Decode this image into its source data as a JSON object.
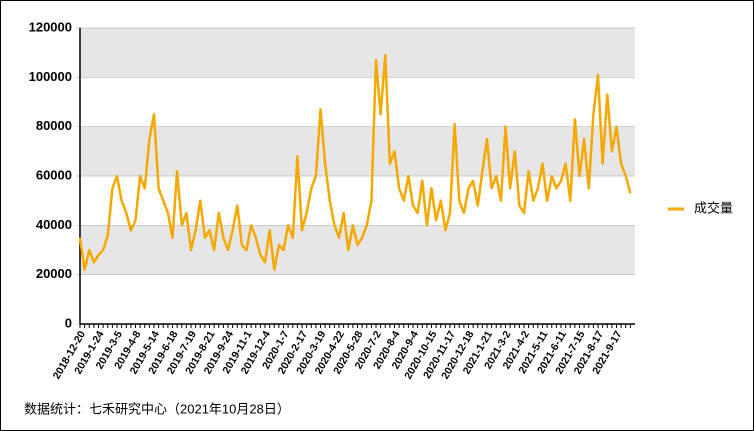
{
  "chart_data": {
    "type": "line",
    "categories": [
      "2018-12-20",
      null,
      null,
      null,
      "2019-1-24",
      null,
      null,
      null,
      "2019-3-5",
      null,
      null,
      null,
      "2019-4-8",
      null,
      null,
      null,
      "2019-5-14",
      null,
      null,
      null,
      "2019-6-18",
      null,
      null,
      null,
      "2019-7-19",
      null,
      null,
      null,
      "2019-8-21",
      null,
      null,
      null,
      "2019-9-24",
      null,
      null,
      null,
      "2019-11-1",
      null,
      null,
      null,
      "2019-12-4",
      null,
      null,
      null,
      "2020-1-7",
      null,
      null,
      null,
      "2020-2-17",
      null,
      null,
      null,
      "2020-3-19",
      null,
      null,
      null,
      "2020-4-22",
      null,
      null,
      null,
      "2020-5-28",
      null,
      null,
      null,
      "2020-7-2",
      null,
      null,
      null,
      "2020-8-4",
      null,
      null,
      null,
      "2020-9-4",
      null,
      null,
      null,
      "2020-10-15",
      null,
      null,
      null,
      "2020-11-17",
      null,
      null,
      null,
      "2020-12-18",
      null,
      null,
      null,
      "2021-1-21",
      null,
      null,
      null,
      "2021-3-2",
      null,
      null,
      null,
      "2021-4-2",
      null,
      null,
      null,
      "2021-5-11",
      null,
      null,
      null,
      "2021-6-11",
      null,
      null,
      null,
      "2021-7-15",
      null,
      null,
      null,
      "2021-8-17",
      null,
      null,
      null,
      "2021-9-17",
      null,
      null,
      null
    ],
    "series": [
      {
        "name": "成交量",
        "color": "#f5a800",
        "values": [
          35000,
          22000,
          30000,
          25000,
          28000,
          30000,
          36000,
          55000,
          60000,
          50000,
          45000,
          38000,
          42000,
          60000,
          55000,
          75000,
          85000,
          55000,
          50000,
          45000,
          35000,
          62000,
          40000,
          45000,
          30000,
          38000,
          50000,
          35000,
          38000,
          30000,
          45000,
          35000,
          30000,
          38000,
          48000,
          32000,
          30000,
          40000,
          35000,
          28000,
          25000,
          38000,
          22000,
          32000,
          30000,
          40000,
          35000,
          68000,
          38000,
          45000,
          55000,
          60000,
          87000,
          65000,
          50000,
          40000,
          35000,
          45000,
          30000,
          40000,
          32000,
          35000,
          40000,
          50000,
          107000,
          85000,
          109000,
          65000,
          70000,
          55000,
          50000,
          60000,
          48000,
          45000,
          58000,
          40000,
          55000,
          42000,
          50000,
          38000,
          45000,
          81000,
          50000,
          45000,
          55000,
          58000,
          48000,
          62000,
          75000,
          55000,
          60000,
          50000,
          80000,
          55000,
          70000,
          48000,
          45000,
          62000,
          50000,
          55000,
          65000,
          50000,
          60000,
          55000,
          58000,
          65000,
          50000,
          83000,
          60000,
          75000,
          55000,
          85000,
          101000,
          65000,
          93000,
          70000,
          80000,
          65000,
          60000,
          53000
        ]
      }
    ],
    "ylim": [
      0,
      120000
    ],
    "yticks": [
      0,
      20000,
      40000,
      60000,
      80000,
      100000,
      120000
    ],
    "bands": true,
    "legend": "right",
    "footnote": "数据统计：七禾研究中心（2021年10月28日）"
  }
}
